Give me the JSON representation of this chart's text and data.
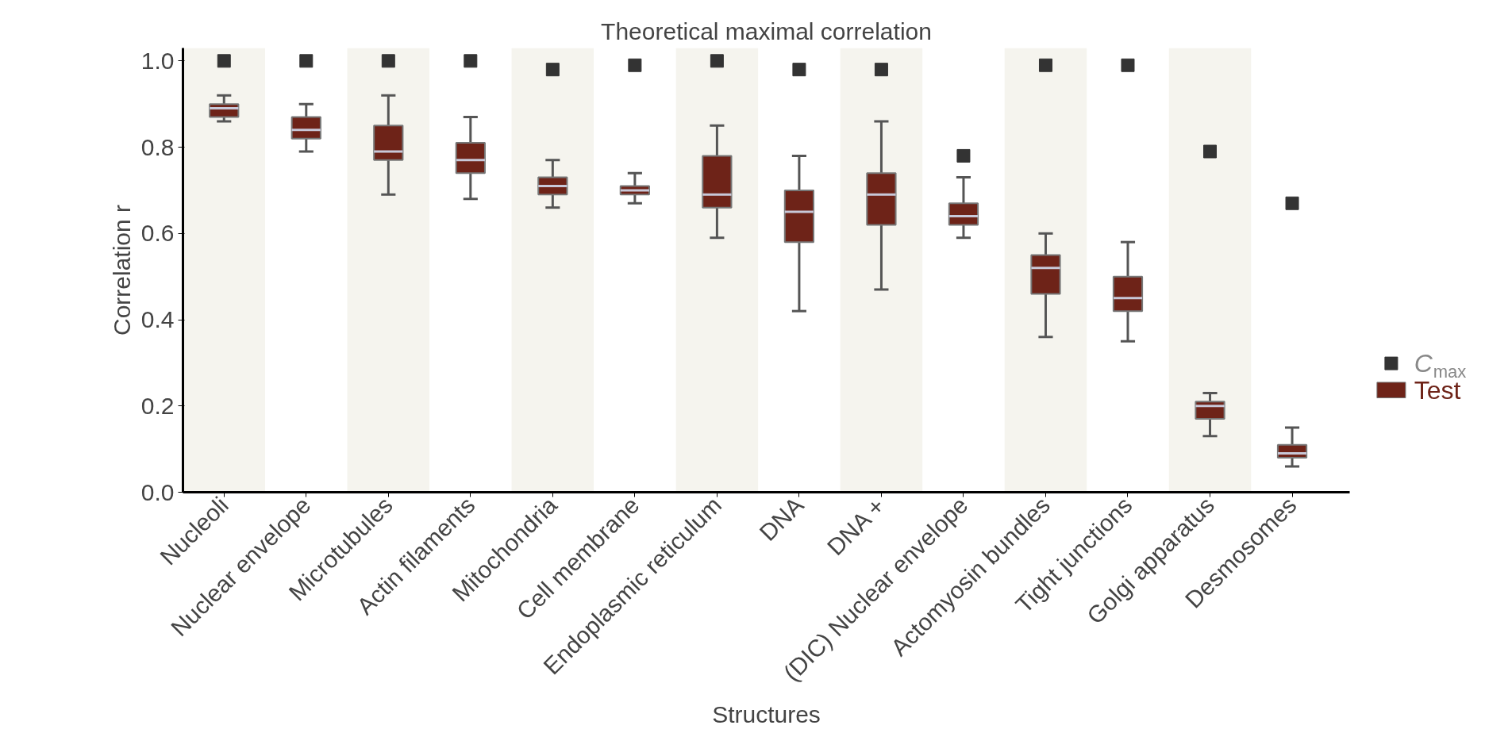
{
  "chart_data": {
    "type": "box",
    "title": "Theoretical maximal correlation",
    "xlabel": "Structures",
    "ylabel": "Correlation r",
    "categories": [
      "Nucleoli",
      "Nuclear envelope",
      "Microtubules",
      "Actin filaments",
      "Mitochondria",
      "Cell membrane",
      "Endoplasmic reticulum",
      "DNA",
      "DNA +",
      "(DIC) Nuclear envelope",
      "Actomyosin bundles",
      "Tight junctions",
      "Golgi apparatus",
      "Desmosomes"
    ],
    "ylim": [
      0,
      1.03
    ],
    "yticks": [
      {
        "value": 0,
        "label": "0.0"
      },
      {
        "value": 0.2,
        "label": "0.2"
      },
      {
        "value": 0.4,
        "label": "0.4"
      },
      {
        "value": 0.6,
        "label": "0.6"
      },
      {
        "value": 0.8,
        "label": "0.8"
      },
      {
        "value": 1,
        "label": "1.0"
      }
    ],
    "legend": "bottom right",
    "grid": false,
    "series": [
      {
        "name": "C$_{max}$",
        "type": "scatter",
        "marker": "square",
        "color": "#333333",
        "values": [
          1.0,
          1.0,
          1.0,
          1.0,
          0.98,
          0.99,
          1.0,
          0.98,
          0.98,
          0.78,
          0.99,
          0.99,
          0.79,
          0.67
        ]
      },
      {
        "name": "Test",
        "type": "box",
        "color": "#6e2318",
        "boxes": [
          {
            "low": 0.86,
            "q1": 0.87,
            "median": 0.89,
            "q3": 0.9,
            "high": 0.92
          },
          {
            "low": 0.79,
            "q1": 0.82,
            "median": 0.84,
            "q3": 0.87,
            "high": 0.9
          },
          {
            "low": 0.69,
            "q1": 0.77,
            "median": 0.79,
            "q3": 0.85,
            "high": 0.92
          },
          {
            "low": 0.68,
            "q1": 0.74,
            "median": 0.77,
            "q3": 0.81,
            "high": 0.87
          },
          {
            "low": 0.66,
            "q1": 0.69,
            "median": 0.71,
            "q3": 0.73,
            "high": 0.77
          },
          {
            "low": 0.67,
            "q1": 0.69,
            "median": 0.7,
            "q3": 0.71,
            "high": 0.74
          },
          {
            "low": 0.59,
            "q1": 0.66,
            "median": 0.69,
            "q3": 0.78,
            "high": 0.85
          },
          {
            "low": 0.42,
            "q1": 0.58,
            "median": 0.65,
            "q3": 0.7,
            "high": 0.78
          },
          {
            "low": 0.47,
            "q1": 0.62,
            "median": 0.69,
            "q3": 0.74,
            "high": 0.86
          },
          {
            "low": 0.59,
            "q1": 0.62,
            "median": 0.64,
            "q3": 0.67,
            "high": 0.73
          },
          {
            "low": 0.36,
            "q1": 0.46,
            "median": 0.52,
            "q3": 0.55,
            "high": 0.6
          },
          {
            "low": 0.35,
            "q1": 0.42,
            "median": 0.45,
            "q3": 0.5,
            "high": 0.58
          },
          {
            "low": 0.13,
            "q1": 0.17,
            "median": 0.2,
            "q3": 0.21,
            "high": 0.23
          },
          {
            "low": 0.06,
            "q1": 0.08,
            "median": 0.09,
            "q3": 0.11,
            "high": 0.15
          }
        ]
      }
    ],
    "bands": [
      {
        "axis": "x",
        "from": "Nucleoli",
        "to": "Nucleoli",
        "color": "#f5f4ee"
      },
      {
        "axis": "x",
        "from": "Microtubules",
        "to": "Microtubules",
        "color": "#f5f4ee"
      },
      {
        "axis": "x",
        "from": "Mitochondria",
        "to": "Mitochondria",
        "color": "#f5f4ee"
      },
      {
        "axis": "x",
        "from": "Endoplasmic reticulum",
        "to": "Endoplasmic reticulum",
        "color": "#f5f4ee"
      },
      {
        "axis": "x",
        "from": "DNA +",
        "to": "DNA +",
        "color": "#f5f4ee"
      },
      {
        "axis": "x",
        "from": "Actomyosin bundles",
        "to": "Actomyosin bundles",
        "color": "#f5f4ee"
      },
      {
        "axis": "x",
        "from": "Golgi apparatus",
        "to": "Golgi apparatus",
        "color": "#f5f4ee"
      }
    ]
  }
}
